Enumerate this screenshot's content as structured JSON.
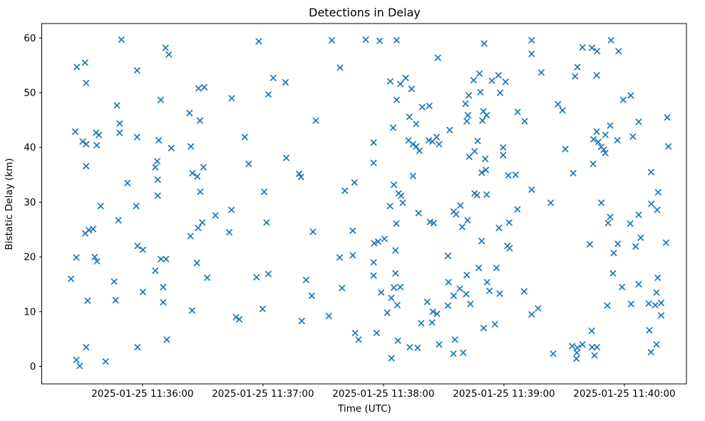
{
  "figure": {
    "background_color": "#ffffff"
  },
  "chart_data": {
    "type": "scatter",
    "title": "Detections in Delay",
    "xlabel": "Time (UTC)",
    "ylabel": "Bistatic Delay (km)",
    "marker": "x",
    "marker_color": "#1f77b4",
    "grid": false,
    "legend": null,
    "x_unit": "seconds after 2025-01-25 11:35:00 UTC",
    "xlim": [
      9.8,
      330.9
    ],
    "ylim": [
      -3.2,
      62.65
    ],
    "x_ticks": [
      {
        "value": 60,
        "label": "2025-01-25 11:36:00"
      },
      {
        "value": 120,
        "label": "2025-01-25 11:37:00"
      },
      {
        "value": 180,
        "label": "2025-01-25 11:38:00"
      },
      {
        "value": 240,
        "label": "2025-01-25 11:39:00"
      },
      {
        "value": 300,
        "label": "2025-01-25 11:40:00"
      }
    ],
    "y_ticks": [
      {
        "value": 0,
        "label": "0"
      },
      {
        "value": 10,
        "label": "10"
      },
      {
        "value": 20,
        "label": "20"
      },
      {
        "value": 30,
        "label": "30"
      },
      {
        "value": 40,
        "label": "40"
      },
      {
        "value": 50,
        "label": "50"
      },
      {
        "value": 60,
        "label": "60"
      }
    ],
    "points": [
      [
        49.5,
        59.7
      ],
      [
        71.5,
        58.2
      ],
      [
        73.1,
        57.0
      ],
      [
        27.3,
        54.7
      ],
      [
        31.4,
        55.5
      ],
      [
        57.3,
        54.1
      ],
      [
        31.9,
        51.8
      ],
      [
        87.9,
        50.8
      ],
      [
        69.1,
        48.7
      ],
      [
        47.3,
        47.7
      ],
      [
        83.4,
        46.3
      ],
      [
        88.6,
        44.9
      ],
      [
        26.5,
        42.9
      ],
      [
        36.9,
        42.7
      ],
      [
        38.3,
        42.3
      ],
      [
        48.6,
        44.4
      ],
      [
        48.6,
        42.7
      ],
      [
        57.3,
        41.9
      ],
      [
        68.1,
        41.3
      ],
      [
        117.9,
        59.4
      ],
      [
        154.3,
        59.6
      ],
      [
        158.4,
        54.6
      ],
      [
        125.1,
        52.7
      ],
      [
        131.2,
        51.9
      ],
      [
        90.8,
        51.0
      ],
      [
        122.7,
        49.7
      ],
      [
        104.4,
        49.0
      ],
      [
        146.3,
        44.9
      ],
      [
        110.9,
        41.9
      ],
      [
        171.2,
        59.7
      ],
      [
        178.1,
        59.5
      ],
      [
        186.6,
        59.6
      ],
      [
        230.2,
        59.0
      ],
      [
        207.1,
        56.4
      ],
      [
        191.1,
        52.7
      ],
      [
        183.4,
        52.1
      ],
      [
        188.4,
        51.6
      ],
      [
        194.0,
        50.7
      ],
      [
        227.8,
        53.5
      ],
      [
        224.9,
        52.3
      ],
      [
        234.0,
        52.2
      ],
      [
        237.3,
        53.2
      ],
      [
        240.8,
        52.0
      ],
      [
        228.3,
        50.1
      ],
      [
        238.1,
        50.0
      ],
      [
        186.6,
        48.7
      ],
      [
        222.5,
        49.5
      ],
      [
        220.9,
        48.0
      ],
      [
        199.3,
        47.4
      ],
      [
        202.8,
        47.6
      ],
      [
        192.9,
        45.6
      ],
      [
        196.3,
        44.3
      ],
      [
        184.8,
        43.6
      ],
      [
        213.0,
        43.2
      ],
      [
        229.8,
        46.6
      ],
      [
        231.4,
        45.9
      ],
      [
        222.1,
        45.9
      ],
      [
        221.5,
        44.8
      ],
      [
        229.3,
        44.9
      ],
      [
        246.8,
        46.5
      ],
      [
        250.3,
        44.8
      ],
      [
        253.8,
        59.6
      ],
      [
        253.8,
        57.1
      ],
      [
        258.6,
        53.7
      ],
      [
        279.1,
        58.3
      ],
      [
        283.8,
        58.2
      ],
      [
        286.4,
        57.6
      ],
      [
        293.3,
        59.6
      ],
      [
        297.1,
        57.6
      ],
      [
        276.6,
        54.7
      ],
      [
        275.4,
        53.0
      ],
      [
        286.2,
        53.2
      ],
      [
        303.2,
        49.5
      ],
      [
        299.4,
        48.7
      ],
      [
        266.9,
        47.9
      ],
      [
        269.2,
        46.8
      ],
      [
        321.3,
        45.5
      ],
      [
        307.1,
        44.7
      ],
      [
        292.9,
        44.0
      ],
      [
        286.2,
        42.9
      ],
      [
        290.5,
        42.3
      ],
      [
        284.6,
        41.5
      ],
      [
        287.0,
        41.0
      ],
      [
        296.5,
        41.3
      ],
      [
        304.2,
        42.0
      ],
      [
        30.2,
        41.1
      ],
      [
        32.0,
        40.6
      ],
      [
        37.2,
        40.4
      ],
      [
        74.3,
        39.9
      ],
      [
        84.1,
        40.2
      ],
      [
        31.9,
        36.6
      ],
      [
        67.3,
        37.5
      ],
      [
        66.4,
        36.4
      ],
      [
        84.9,
        35.3
      ],
      [
        87.3,
        34.7
      ],
      [
        52.5,
        33.5
      ],
      [
        67.6,
        34.1
      ],
      [
        67.6,
        31.2
      ],
      [
        88.8,
        31.9
      ],
      [
        39.2,
        29.3
      ],
      [
        56.9,
        29.3
      ],
      [
        48.0,
        26.7
      ],
      [
        31.5,
        24.3
      ],
      [
        33.3,
        24.9
      ],
      [
        35.4,
        25.1
      ],
      [
        87.7,
        25.3
      ],
      [
        83.9,
        23.8
      ],
      [
        57.5,
        22.0
      ],
      [
        60.2,
        21.3
      ],
      [
        27.1,
        19.9
      ],
      [
        36.2,
        20.0
      ],
      [
        37.3,
        19.2
      ],
      [
        69.2,
        19.6
      ],
      [
        71.7,
        19.6
      ],
      [
        87.1,
        18.9
      ],
      [
        131.6,
        38.1
      ],
      [
        112.9,
        37.0
      ],
      [
        90.4,
        36.4
      ],
      [
        138.0,
        35.2
      ],
      [
        138.9,
        34.6
      ],
      [
        165.6,
        33.6
      ],
      [
        160.8,
        32.1
      ],
      [
        120.6,
        31.9
      ],
      [
        104.3,
        28.6
      ],
      [
        96.3,
        27.6
      ],
      [
        121.8,
        26.3
      ],
      [
        89.8,
        26.3
      ],
      [
        103.2,
        24.5
      ],
      [
        144.9,
        24.6
      ],
      [
        164.7,
        24.8
      ],
      [
        158.2,
        19.9
      ],
      [
        164.7,
        20.3
      ],
      [
        175.1,
        40.9
      ],
      [
        192.5,
        41.3
      ],
      [
        194.7,
        40.6
      ],
      [
        196.3,
        40.2
      ],
      [
        197.9,
        39.4
      ],
      [
        202.6,
        41.3
      ],
      [
        204.4,
        41.1
      ],
      [
        206.5,
        41.9
      ],
      [
        207.7,
        40.6
      ],
      [
        226.9,
        41.2
      ],
      [
        175.1,
        37.2
      ],
      [
        222.7,
        38.3
      ],
      [
        225.4,
        39.3
      ],
      [
        230.7,
        37.9
      ],
      [
        239.6,
        40.0
      ],
      [
        239.6,
        38.6
      ],
      [
        228.9,
        35.4
      ],
      [
        231.0,
        35.9
      ],
      [
        242.2,
        34.9
      ],
      [
        245.8,
        35.0
      ],
      [
        194.7,
        34.8
      ],
      [
        185.2,
        33.2
      ],
      [
        187.6,
        31.6
      ],
      [
        188.8,
        31.2
      ],
      [
        189.6,
        29.9
      ],
      [
        183.3,
        29.3
      ],
      [
        225.4,
        31.6
      ],
      [
        226.6,
        31.3
      ],
      [
        231.4,
        31.4
      ],
      [
        218.3,
        29.4
      ],
      [
        215.0,
        28.3
      ],
      [
        216.2,
        27.8
      ],
      [
        197.5,
        28.0
      ],
      [
        203.2,
        26.4
      ],
      [
        205.0,
        26.2
      ],
      [
        186.4,
        26.1
      ],
      [
        221.9,
        26.7
      ],
      [
        219.2,
        25.5
      ],
      [
        246.7,
        28.7
      ],
      [
        242.6,
        26.3
      ],
      [
        237.5,
        25.3
      ],
      [
        175.4,
        22.5
      ],
      [
        177.4,
        22.8
      ],
      [
        180.5,
        23.3
      ],
      [
        228.9,
        22.9
      ],
      [
        241.7,
        22.0
      ],
      [
        242.8,
        21.6
      ],
      [
        186.0,
        21.2
      ],
      [
        212.1,
        20.2
      ],
      [
        175.1,
        19.0
      ],
      [
        270.6,
        39.7
      ],
      [
        288.4,
        40.1
      ],
      [
        289.7,
        39.6
      ],
      [
        290.5,
        39.0
      ],
      [
        321.9,
        40.2
      ],
      [
        284.4,
        37.0
      ],
      [
        274.5,
        35.3
      ],
      [
        313.3,
        35.5
      ],
      [
        253.8,
        32.3
      ],
      [
        263.3,
        29.9
      ],
      [
        316.8,
        31.8
      ],
      [
        288.5,
        29.9
      ],
      [
        313.4,
        29.7
      ],
      [
        316.3,
        28.6
      ],
      [
        307.1,
        27.7
      ],
      [
        292.9,
        27.3
      ],
      [
        291.9,
        26.2
      ],
      [
        302.9,
        26.1
      ],
      [
        308.1,
        23.5
      ],
      [
        282.8,
        22.3
      ],
      [
        296.7,
        22.4
      ],
      [
        305.6,
        21.9
      ],
      [
        320.7,
        22.6
      ],
      [
        294.7,
        20.7
      ],
      [
        66.4,
        17.5
      ],
      [
        24.4,
        16.0
      ],
      [
        45.9,
        15.5
      ],
      [
        60.2,
        13.6
      ],
      [
        70.3,
        14.5
      ],
      [
        32.7,
        12.0
      ],
      [
        46.6,
        12.1
      ],
      [
        70.3,
        11.7
      ],
      [
        84.7,
        10.2
      ],
      [
        72.1,
        4.9
      ],
      [
        31.9,
        3.5
      ],
      [
        57.5,
        3.5
      ],
      [
        27.1,
        1.2
      ],
      [
        28.7,
        0.1
      ],
      [
        41.6,
        0.9
      ],
      [
        92.2,
        16.2
      ],
      [
        116.8,
        16.3
      ],
      [
        122.7,
        16.9
      ],
      [
        141.5,
        15.8
      ],
      [
        159.4,
        14.3
      ],
      [
        144.3,
        12.9
      ],
      [
        119.8,
        10.5
      ],
      [
        106.6,
        9.0
      ],
      [
        108.2,
        8.6
      ],
      [
        139.3,
        8.3
      ],
      [
        152.8,
        9.2
      ],
      [
        165.9,
        6.1
      ],
      [
        167.6,
        4.9
      ],
      [
        175.1,
        16.6
      ],
      [
        186.0,
        17.0
      ],
      [
        227.5,
        18.0
      ],
      [
        236.3,
        18.0
      ],
      [
        221.5,
        16.7
      ],
      [
        212.4,
        15.4
      ],
      [
        231.6,
        15.4
      ],
      [
        185.2,
        14.4
      ],
      [
        188.4,
        14.5
      ],
      [
        178.9,
        13.5
      ],
      [
        232.8,
        13.8
      ],
      [
        237.9,
        13.3
      ],
      [
        250.1,
        13.7
      ],
      [
        218.0,
        14.2
      ],
      [
        215.0,
        12.9
      ],
      [
        221.2,
        13.2
      ],
      [
        183.9,
        12.5
      ],
      [
        186.9,
        11.2
      ],
      [
        201.8,
        11.8
      ],
      [
        212.1,
        11.1
      ],
      [
        223.3,
        11.4
      ],
      [
        181.9,
        9.8
      ],
      [
        204.6,
        10.0
      ],
      [
        206.7,
        9.6
      ],
      [
        198.8,
        7.9
      ],
      [
        204.2,
        8.0
      ],
      [
        229.9,
        7.0
      ],
      [
        235.5,
        7.7
      ],
      [
        176.6,
        6.1
      ],
      [
        187.2,
        4.7
      ],
      [
        193.1,
        3.5
      ],
      [
        197.0,
        3.4
      ],
      [
        207.7,
        4.0
      ],
      [
        215.6,
        4.9
      ],
      [
        214.8,
        2.3
      ],
      [
        219.7,
        2.5
      ],
      [
        184.0,
        1.5
      ],
      [
        294.3,
        17.0
      ],
      [
        298.8,
        14.5
      ],
      [
        307.1,
        15.0
      ],
      [
        316.6,
        16.2
      ],
      [
        316.0,
        13.5
      ],
      [
        253.8,
        9.5
      ],
      [
        257.0,
        10.6
      ],
      [
        291.5,
        11.1
      ],
      [
        303.3,
        11.4
      ],
      [
        312.1,
        11.5
      ],
      [
        315.4,
        11.2
      ],
      [
        318.3,
        11.6
      ],
      [
        318.3,
        9.3
      ],
      [
        283.7,
        6.5
      ],
      [
        312.4,
        6.6
      ],
      [
        274.0,
        3.7
      ],
      [
        276.6,
        3.4
      ],
      [
        279.1,
        4.0
      ],
      [
        276.3,
        2.5
      ],
      [
        276.1,
        1.4
      ],
      [
        283.9,
        3.5
      ],
      [
        286.3,
        3.5
      ],
      [
        285.1,
        2.0
      ],
      [
        264.5,
        2.3
      ],
      [
        316.0,
        4.0
      ],
      [
        313.2,
        2.6
      ]
    ]
  }
}
